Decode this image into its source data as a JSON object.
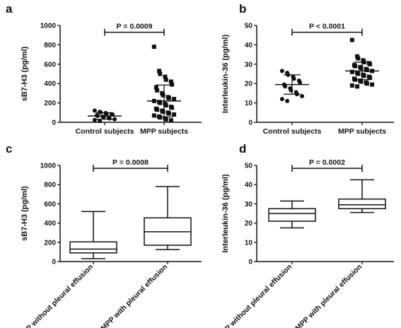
{
  "figure": {
    "panels": [
      "a",
      "b",
      "c",
      "d"
    ]
  },
  "chart_data": [
    {
      "panel": "a",
      "type": "scatter",
      "ylabel": "sB7-H3 (pg/ml)",
      "ylim": [
        0,
        1000
      ],
      "yticks": [
        0,
        200,
        400,
        600,
        800,
        1000
      ],
      "categories": [
        "Control subjects",
        "MPP subjects"
      ],
      "series": [
        {
          "values": [
            120,
            108,
            102,
            96,
            88,
            84,
            80,
            72,
            66,
            58,
            52,
            46,
            40,
            32,
            24,
            14
          ],
          "mean": 65,
          "sd_low": 32,
          "sd_high": 98
        },
        {
          "values": [
            780,
            530,
            500,
            470,
            440,
            420,
            390,
            360,
            330,
            300,
            280,
            260,
            250,
            240,
            220,
            210,
            200,
            190,
            175,
            160,
            150,
            140,
            130,
            120,
            110,
            100,
            90,
            80,
            70,
            60,
            50,
            40,
            30,
            20
          ],
          "mean": 220,
          "sd_low": 55,
          "sd_high": 385
        }
      ],
      "annotation": {
        "text": "P = 0.0009",
        "between": [
          0,
          1
        ],
        "y": 930
      }
    },
    {
      "panel": "b",
      "type": "scatter",
      "ylabel": "Interleukin-36 (pg/ml)",
      "ylim": [
        0,
        50
      ],
      "yticks": [
        0,
        10,
        20,
        30,
        40,
        50
      ],
      "categories": [
        "Control subjects",
        "MPP subjects"
      ],
      "series": [
        {
          "values": [
            26.5,
            25.5,
            24.5,
            23.5,
            22.5,
            21.5,
            20.5,
            19.5,
            18.5,
            17.5,
            16.5,
            15.5,
            14.5,
            13.5,
            12.0,
            11.0
          ],
          "mean": 19.5,
          "sd_low": 14.5,
          "sd_high": 24.5
        },
        {
          "values": [
            42.5,
            34,
            33,
            32,
            31,
            30.5,
            30,
            29.5,
            29,
            28.5,
            28,
            27.5,
            27,
            26.5,
            26,
            25.5,
            25,
            24.5,
            24,
            23.5,
            23,
            22.5,
            22,
            21.5,
            21,
            20.5,
            20,
            19.5,
            19,
            18.5
          ],
          "mean": 26.5,
          "sd_low": 22,
          "sd_high": 31
        }
      ],
      "annotation": {
        "text": "P < 0.0001",
        "between": [
          0,
          1
        ],
        "y": 46.5
      }
    },
    {
      "panel": "c",
      "type": "box",
      "ylabel": "sB7-H3 (pg/ml)",
      "ylim": [
        0,
        1000
      ],
      "yticks": [
        0,
        200,
        400,
        600,
        800,
        1000
      ],
      "categories": [
        "MPP without pleural effusion",
        "MPP with pleural effusion"
      ],
      "boxes": [
        {
          "min": 30,
          "q1": 90,
          "median": 130,
          "q3": 205,
          "max": 520
        },
        {
          "min": 125,
          "q1": 170,
          "median": 310,
          "q3": 455,
          "max": 780
        }
      ],
      "annotation": {
        "text": "P = 0.0008",
        "between": [
          0,
          1
        ],
        "y": 970
      }
    },
    {
      "panel": "d",
      "type": "box",
      "ylabel": "Interleukin-36 (pg/ml)",
      "ylim": [
        0,
        50
      ],
      "yticks": [
        0,
        10,
        20,
        30,
        40,
        50
      ],
      "categories": [
        "MPP without pleural effusion",
        "MPP with pleural effusion"
      ],
      "boxes": [
        {
          "min": 17.5,
          "q1": 21,
          "median": 25,
          "q3": 27.5,
          "max": 31.5
        },
        {
          "min": 25.5,
          "q1": 27.5,
          "median": 29.5,
          "q3": 32.5,
          "max": 42.5
        }
      ],
      "annotation": {
        "text": "P = 0.0002",
        "between": [
          0,
          1
        ],
        "y": 48.5
      }
    }
  ]
}
